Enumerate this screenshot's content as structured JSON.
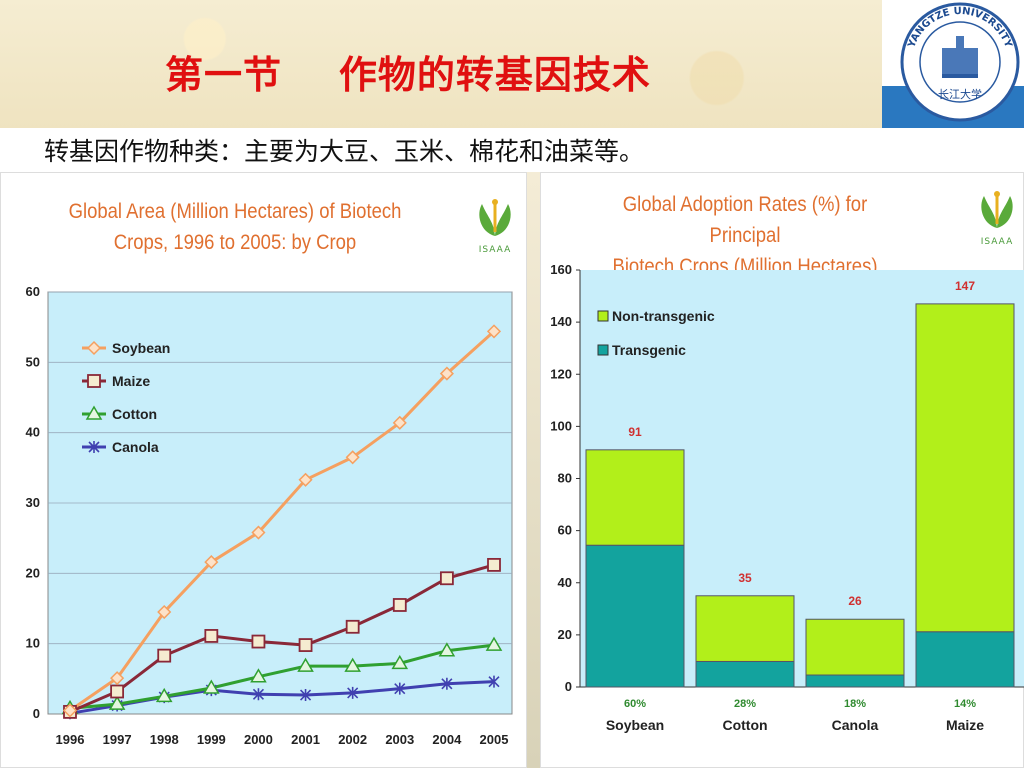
{
  "slide": {
    "title": "第一节    作物的转基因技术",
    "subtitle": "转基因作物种类：主要为大豆、玉米、棉花和油菜等。"
  },
  "logo": {
    "text": "YANGTZE UNIVERSITY",
    "chinese": "长江大学"
  },
  "isaaa": "ISAAA",
  "chart_data": [
    {
      "type": "line",
      "title_lines": [
        "Global Area (Million Hectares) of Biotech",
        "Crops, 1996 to 2005: by Crop"
      ],
      "x": [
        "1996",
        "1997",
        "1998",
        "1999",
        "2000",
        "2001",
        "2002",
        "2003",
        "2004",
        "2005"
      ],
      "ylim": [
        0,
        60
      ],
      "yticks": [
        0,
        10,
        20,
        30,
        40,
        50,
        60
      ],
      "grid": true,
      "legend_position": "top-left",
      "series": [
        {
          "name": "Soybean",
          "color": "#f5a060",
          "marker": "diamond",
          "values": [
            0.5,
            5.1,
            14.5,
            21.6,
            25.8,
            33.3,
            36.5,
            41.4,
            48.4,
            54.4
          ]
        },
        {
          "name": "Maize",
          "color": "#8a2838",
          "marker": "square",
          "values": [
            0.3,
            3.2,
            8.3,
            11.1,
            10.3,
            9.8,
            12.4,
            15.5,
            19.3,
            21.2
          ]
        },
        {
          "name": "Cotton",
          "color": "#30a030",
          "marker": "triangle",
          "values": [
            0.8,
            1.4,
            2.5,
            3.7,
            5.3,
            6.8,
            6.8,
            7.2,
            9.0,
            9.8
          ]
        },
        {
          "name": "Canola",
          "color": "#4040b0",
          "marker": "x",
          "values": [
            0.1,
            1.2,
            2.4,
            3.4,
            2.8,
            2.7,
            3.0,
            3.6,
            4.3,
            4.6
          ]
        }
      ]
    },
    {
      "type": "bar",
      "stacked": true,
      "title_lines": [
        "Global Adoption Rates (%) for Principal",
        "Biotech Crops (Million Hectares)"
      ],
      "categories": [
        "Soybean",
        "Cotton",
        "Canola",
        "Maize"
      ],
      "ylim": [
        0,
        160
      ],
      "yticks": [
        0,
        20,
        40,
        60,
        80,
        100,
        120,
        140,
        160
      ],
      "legend_position": "top-left",
      "totals": [
        "91",
        "35",
        "26",
        "147"
      ],
      "adoption_pct": [
        "60%",
        "28%",
        "18%",
        "14%"
      ],
      "series": [
        {
          "name": "Transgenic",
          "color": "#13a39e",
          "values": [
            54.4,
            9.8,
            4.6,
            21.2
          ]
        },
        {
          "name": "Non-transgenic",
          "color": "#b2ef1a",
          "values": [
            36.6,
            25.2,
            21.4,
            125.8
          ]
        }
      ]
    }
  ]
}
